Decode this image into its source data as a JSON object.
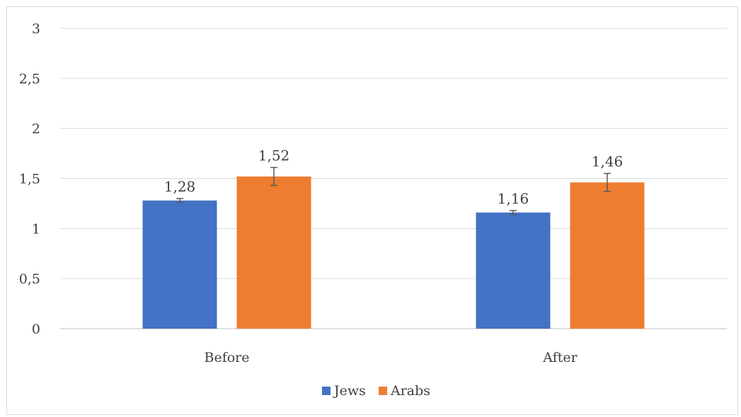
{
  "chart_data": {
    "type": "bar",
    "categories": [
      "Before",
      "After"
    ],
    "series": [
      {
        "name": "Jews",
        "color": "#4472c4",
        "values": [
          1.28,
          1.16
        ],
        "errors": [
          0.02,
          0.02
        ]
      },
      {
        "name": "Arabs",
        "color": "#ed7d31",
        "values": [
          1.52,
          1.46
        ],
        "errors": [
          0.09,
          0.09
        ]
      }
    ],
    "data_labels": [
      [
        "1,28",
        "1,16"
      ],
      [
        "1,52",
        "1,46"
      ]
    ],
    "ylim": [
      0,
      3
    ],
    "y_ticks": [
      0,
      0.5,
      1,
      1.5,
      2,
      2.5,
      3
    ],
    "y_tick_labels": [
      "0",
      "0,5",
      "1",
      "1,5",
      "2",
      "2,5",
      "3"
    ],
    "grid": true,
    "legend_position": "bottom",
    "gridline_color": "#d9d9d9",
    "axis_line_color": "#bfbfbf"
  }
}
